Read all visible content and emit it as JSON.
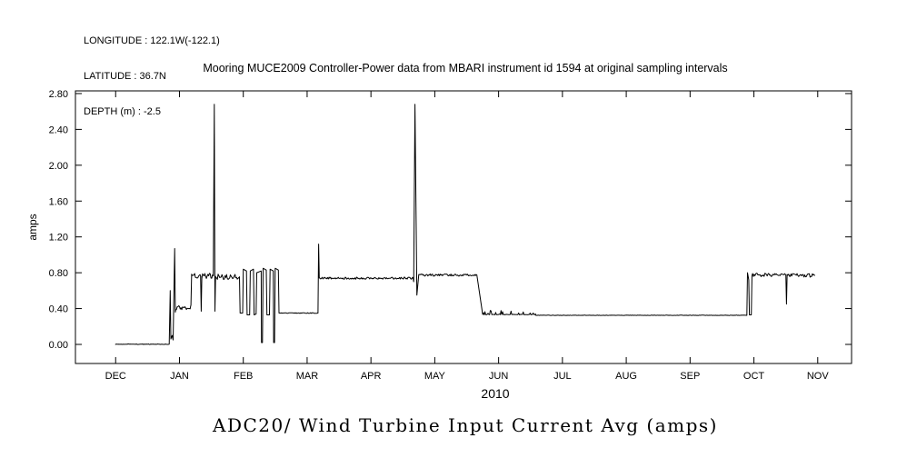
{
  "header": {
    "longitude": "LONGITUDE : 122.1W(-122.1)",
    "latitude": "LATITUDE : 36.7N",
    "depth": "DEPTH (m) : -2.5"
  },
  "chart_data": {
    "type": "line",
    "title": "Mooring MUCE2009 Controller-Power data from MBARI instrument id 1594 at original sampling intervals",
    "figure_title": "ADC20/ Wind Turbine Input Current Avg (amps)",
    "year_label": "2010",
    "ylabel": "amps",
    "x_ticks": [
      "DEC",
      "JAN",
      "FEB",
      "MAR",
      "APR",
      "MAY",
      "JUN",
      "JUL",
      "AUG",
      "SEP",
      "OCT",
      "NOV"
    ],
    "y_ticks": [
      0.0,
      0.4,
      0.8,
      1.2,
      1.6,
      2.0,
      2.4,
      2.8
    ],
    "xlim": [
      -0.63,
      11.53
    ],
    "ylim": [
      -0.213,
      2.83
    ],
    "line_color": "#000000",
    "grid": false,
    "legend": "none",
    "noise_seed": 123456789,
    "series_name": "ADC20 Wind Turbine Input Current Avg (amps)",
    "segments": [
      {
        "type": "flat",
        "x0": 0.0,
        "x1": 0.84,
        "y": 0.002,
        "noise": 0.003,
        "mode": "sym"
      },
      {
        "type": "pts",
        "pts": [
          [
            0.855,
            0.6
          ],
          [
            0.865,
            0.06
          ],
          [
            0.885,
            0.1
          ],
          [
            0.9,
            0.05
          ],
          [
            0.925,
            1.07
          ],
          [
            0.935,
            0.36
          ]
        ]
      },
      {
        "type": "flat",
        "x0": 0.94,
        "x1": 1.17,
        "y": 0.41,
        "noise": 0.025,
        "mode": "sym"
      },
      {
        "type": "pts",
        "pts": [
          [
            1.18,
            0.44
          ],
          [
            1.19,
            0.76
          ]
        ]
      },
      {
        "type": "flat",
        "x0": 1.19,
        "x1": 1.33,
        "y": 0.765,
        "noise": 0.03,
        "mode": "sym"
      },
      {
        "type": "pts",
        "pts": [
          [
            1.34,
            0.37
          ],
          [
            1.35,
            0.76
          ]
        ]
      },
      {
        "type": "flat",
        "x0": 1.35,
        "x1": 1.53,
        "y": 0.765,
        "noise": 0.03,
        "mode": "sym"
      },
      {
        "type": "pts",
        "pts": [
          [
            1.545,
            2.68
          ],
          [
            1.555,
            0.37
          ],
          [
            1.565,
            0.76
          ]
        ]
      },
      {
        "type": "flat",
        "x0": 1.57,
        "x1": 1.94,
        "y": 0.755,
        "noise": 0.03,
        "mode": "sym"
      },
      {
        "type": "pts",
        "pts": [
          [
            1.95,
            0.35
          ],
          [
            1.99,
            0.35
          ],
          [
            2.0,
            0.84
          ]
        ]
      },
      {
        "type": "pts",
        "pts": [
          [
            2.05,
            0.82
          ],
          [
            2.06,
            0.33
          ],
          [
            2.1,
            0.33
          ],
          [
            2.11,
            0.82
          ],
          [
            2.16,
            0.84
          ],
          [
            2.17,
            0.33
          ],
          [
            2.2,
            0.34
          ],
          [
            2.21,
            0.8
          ],
          [
            2.28,
            0.82
          ],
          [
            2.285,
            0.02
          ],
          [
            2.3,
            0.02
          ],
          [
            2.31,
            0.85
          ],
          [
            2.36,
            0.83
          ],
          [
            2.37,
            0.33
          ],
          [
            2.41,
            0.33
          ],
          [
            2.42,
            0.84
          ],
          [
            2.47,
            0.82
          ],
          [
            2.475,
            0.02
          ],
          [
            2.49,
            0.02
          ],
          [
            2.5,
            0.85
          ],
          [
            2.55,
            0.83
          ],
          [
            2.56,
            0.35
          ],
          [
            2.6,
            0.35
          ]
        ]
      },
      {
        "type": "flat",
        "x0": 2.6,
        "x1": 3.17,
        "y": 0.35,
        "noise": 0.004,
        "mode": "sym"
      },
      {
        "type": "pts",
        "pts": [
          [
            3.18,
            1.12
          ],
          [
            3.19,
            0.74
          ]
        ]
      },
      {
        "type": "flat",
        "x0": 3.2,
        "x1": 4.66,
        "y": 0.74,
        "noise": 0.012,
        "mode": "sym"
      },
      {
        "type": "pts",
        "pts": [
          [
            4.67,
            0.7
          ],
          [
            4.69,
            2.68
          ],
          [
            4.72,
            0.55
          ],
          [
            4.75,
            0.78
          ]
        ]
      },
      {
        "type": "flat",
        "x0": 4.76,
        "x1": 5.66,
        "y": 0.775,
        "noise": 0.012,
        "mode": "sym"
      },
      {
        "type": "pts",
        "pts": [
          [
            5.75,
            0.335
          ]
        ]
      },
      {
        "type": "flat",
        "x0": 5.75,
        "x1": 6.58,
        "y": 0.33,
        "noise": 0.05,
        "mode": "up"
      },
      {
        "type": "flat",
        "x0": 6.58,
        "x1": 9.89,
        "y": 0.325,
        "noise": 0.002,
        "mode": "sym"
      },
      {
        "type": "pts",
        "pts": [
          [
            9.9,
            0.8
          ],
          [
            9.92,
            0.72
          ],
          [
            9.93,
            0.33
          ],
          [
            9.96,
            0.33
          ],
          [
            9.97,
            0.77
          ]
        ]
      },
      {
        "type": "flat",
        "x0": 9.98,
        "x1": 10.5,
        "y": 0.775,
        "noise": 0.02,
        "mode": "sym"
      },
      {
        "type": "pts",
        "pts": [
          [
            10.51,
            0.45
          ],
          [
            10.52,
            0.775
          ]
        ]
      },
      {
        "type": "flat",
        "x0": 10.52,
        "x1": 10.95,
        "y": 0.77,
        "noise": 0.02,
        "mode": "sym"
      }
    ]
  }
}
